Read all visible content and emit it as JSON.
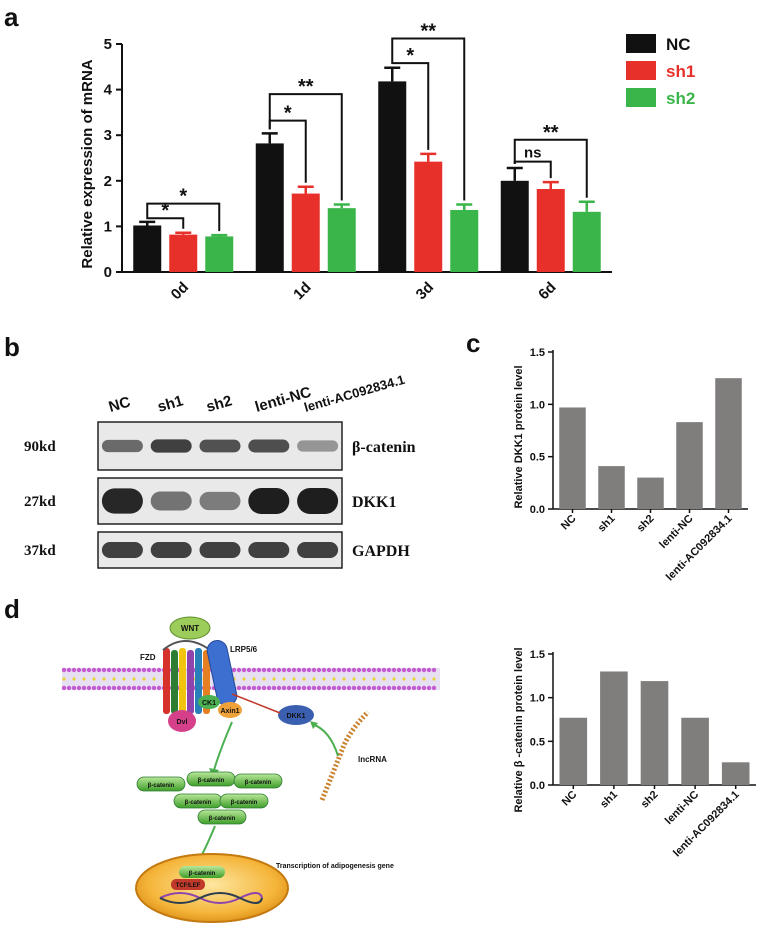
{
  "panels": {
    "a": "a",
    "b": "b",
    "c": "c",
    "d": "d"
  },
  "chart_data": [
    {
      "id": "a",
      "type": "bar",
      "ylabel": "Relative expression of mRNA",
      "ylim": [
        0,
        5
      ],
      "yticks": [
        "0",
        "1",
        "2",
        "3",
        "4",
        "5"
      ],
      "categories": [
        "0d",
        "1d",
        "3d",
        "6d"
      ],
      "series": [
        {
          "name": "NC",
          "color": "#111111",
          "values": [
            1.02,
            2.82,
            4.18,
            2.0
          ],
          "errors": [
            0.08,
            0.22,
            0.3,
            0.28
          ]
        },
        {
          "name": "sh1",
          "color": "#e8302a",
          "values": [
            0.82,
            1.72,
            2.42,
            1.82
          ],
          "errors": [
            0.04,
            0.15,
            0.17,
            0.15
          ]
        },
        {
          "name": "sh2",
          "color": "#3ab54a",
          "values": [
            0.78,
            1.4,
            1.36,
            1.32
          ],
          "errors": [
            0.03,
            0.08,
            0.12,
            0.22
          ]
        }
      ],
      "annotations": [
        {
          "group": 0,
          "from": 0,
          "to": 1,
          "label": "*",
          "y": 1.18
        },
        {
          "group": 0,
          "from": 0,
          "to": 2,
          "label": "*",
          "y": 1.5
        },
        {
          "group": 1,
          "from": 0,
          "to": 1,
          "label": "*",
          "y": 3.32
        },
        {
          "group": 1,
          "from": 0,
          "to": 2,
          "label": "**",
          "y": 3.9
        },
        {
          "group": 2,
          "from": 0,
          "to": 1,
          "label": "*",
          "y": 4.58
        },
        {
          "group": 2,
          "from": 0,
          "to": 2,
          "label": "**",
          "y": 5.12
        },
        {
          "group": 3,
          "from": 0,
          "to": 1,
          "label": "ns",
          "y": 2.42
        },
        {
          "group": 3,
          "from": 0,
          "to": 2,
          "label": "**",
          "y": 2.9
        }
      ],
      "legend_position": "top-right"
    },
    {
      "id": "c",
      "type": "bar",
      "ylabel": "Relative DKK1 protein level",
      "ylim": [
        0,
        1.5
      ],
      "yticks": [
        "0.0",
        "0.5",
        "1.0",
        "1.5"
      ],
      "categories": [
        "NC",
        "sh1",
        "sh2",
        "lenti-NC",
        "lenti-AC092834.1"
      ],
      "values": [
        0.97,
        0.41,
        0.3,
        0.83,
        1.25
      ],
      "color": "#807d7d"
    },
    {
      "id": "c2",
      "type": "bar",
      "ylabel": "Relative β -catenin protein level",
      "ylim": [
        0,
        1.5
      ],
      "yticks": [
        "0.0",
        "0.5",
        "1.0",
        "1.5"
      ],
      "categories": [
        "NC",
        "sh1",
        "sh2",
        "lenti-NC",
        "lenti-AC092834.1"
      ],
      "values": [
        0.77,
        1.3,
        1.19,
        0.77,
        0.26
      ],
      "color": "#807d7d"
    }
  ],
  "blot": {
    "lanes": [
      "NC",
      "sh1",
      "sh2",
      "lenti-NC",
      "lenti-AC092834.1"
    ],
    "rows": [
      {
        "size": "90kd",
        "protein": "β-catenin",
        "intensity": [
          0.55,
          0.8,
          0.7,
          0.72,
          0.3
        ]
      },
      {
        "size": "27kd",
        "protein": "DKK1",
        "intensity": [
          0.95,
          0.5,
          0.45,
          1.0,
          1.0
        ]
      },
      {
        "size": "37kd",
        "protein": "GAPDH",
        "intensity": [
          0.8,
          0.8,
          0.8,
          0.8,
          0.8
        ]
      }
    ]
  },
  "pathway": {
    "wnt": "WNT",
    "fzd": "FZD",
    "lrp": "LRP5/6",
    "ck1": "CK1",
    "dvl": "Dvl",
    "axin": "Axin1",
    "dkk1": "DKK1",
    "lncrna": "lncRNA",
    "beta_catenin": "β-catenin",
    "tcf": "TCF/LEF",
    "transcription": "Transcription of adipogenesis gene"
  }
}
